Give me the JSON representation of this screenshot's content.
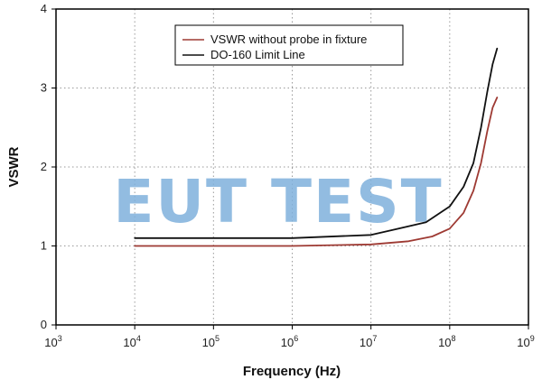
{
  "chart_data": {
    "type": "line",
    "xscale": "log",
    "xlim_exp": [
      3,
      9
    ],
    "ylim": [
      0,
      4
    ],
    "xticks": [
      {
        "base": "10",
        "exp": "3"
      },
      {
        "base": "10",
        "exp": "4"
      },
      {
        "base": "10",
        "exp": "5"
      },
      {
        "base": "10",
        "exp": "6"
      },
      {
        "base": "10",
        "exp": "7"
      },
      {
        "base": "10",
        "exp": "8"
      },
      {
        "base": "10",
        "exp": "9"
      }
    ],
    "yticks": [
      "0",
      "1",
      "2",
      "3",
      "4"
    ],
    "xlabel": "Frequency (Hz)",
    "ylabel": "VSWR",
    "grid": true,
    "legend_position": "top-center",
    "watermark": "EUT TEST",
    "series": [
      {
        "name": "VSWR without probe in fixture",
        "color": "#9e3a33",
        "points": [
          [
            10000,
            1.0
          ],
          [
            100000,
            1.0
          ],
          [
            1000000,
            1.0
          ],
          [
            10000000,
            1.02
          ],
          [
            30000000,
            1.06
          ],
          [
            60000000,
            1.12
          ],
          [
            100000000,
            1.22
          ],
          [
            150000000,
            1.42
          ],
          [
            200000000,
            1.7
          ],
          [
            250000000,
            2.05
          ],
          [
            300000000,
            2.45
          ],
          [
            350000000,
            2.75
          ],
          [
            400000000,
            2.88
          ]
        ]
      },
      {
        "name": "DO-160 Limit Line",
        "color": "#111111",
        "points": [
          [
            10000,
            1.1
          ],
          [
            100000,
            1.1
          ],
          [
            1000000,
            1.1
          ],
          [
            10000000,
            1.14
          ],
          [
            50000000,
            1.3
          ],
          [
            100000000,
            1.5
          ],
          [
            150000000,
            1.75
          ],
          [
            200000000,
            2.05
          ],
          [
            250000000,
            2.5
          ],
          [
            300000000,
            2.95
          ],
          [
            350000000,
            3.3
          ],
          [
            400000000,
            3.5
          ]
        ]
      }
    ]
  }
}
